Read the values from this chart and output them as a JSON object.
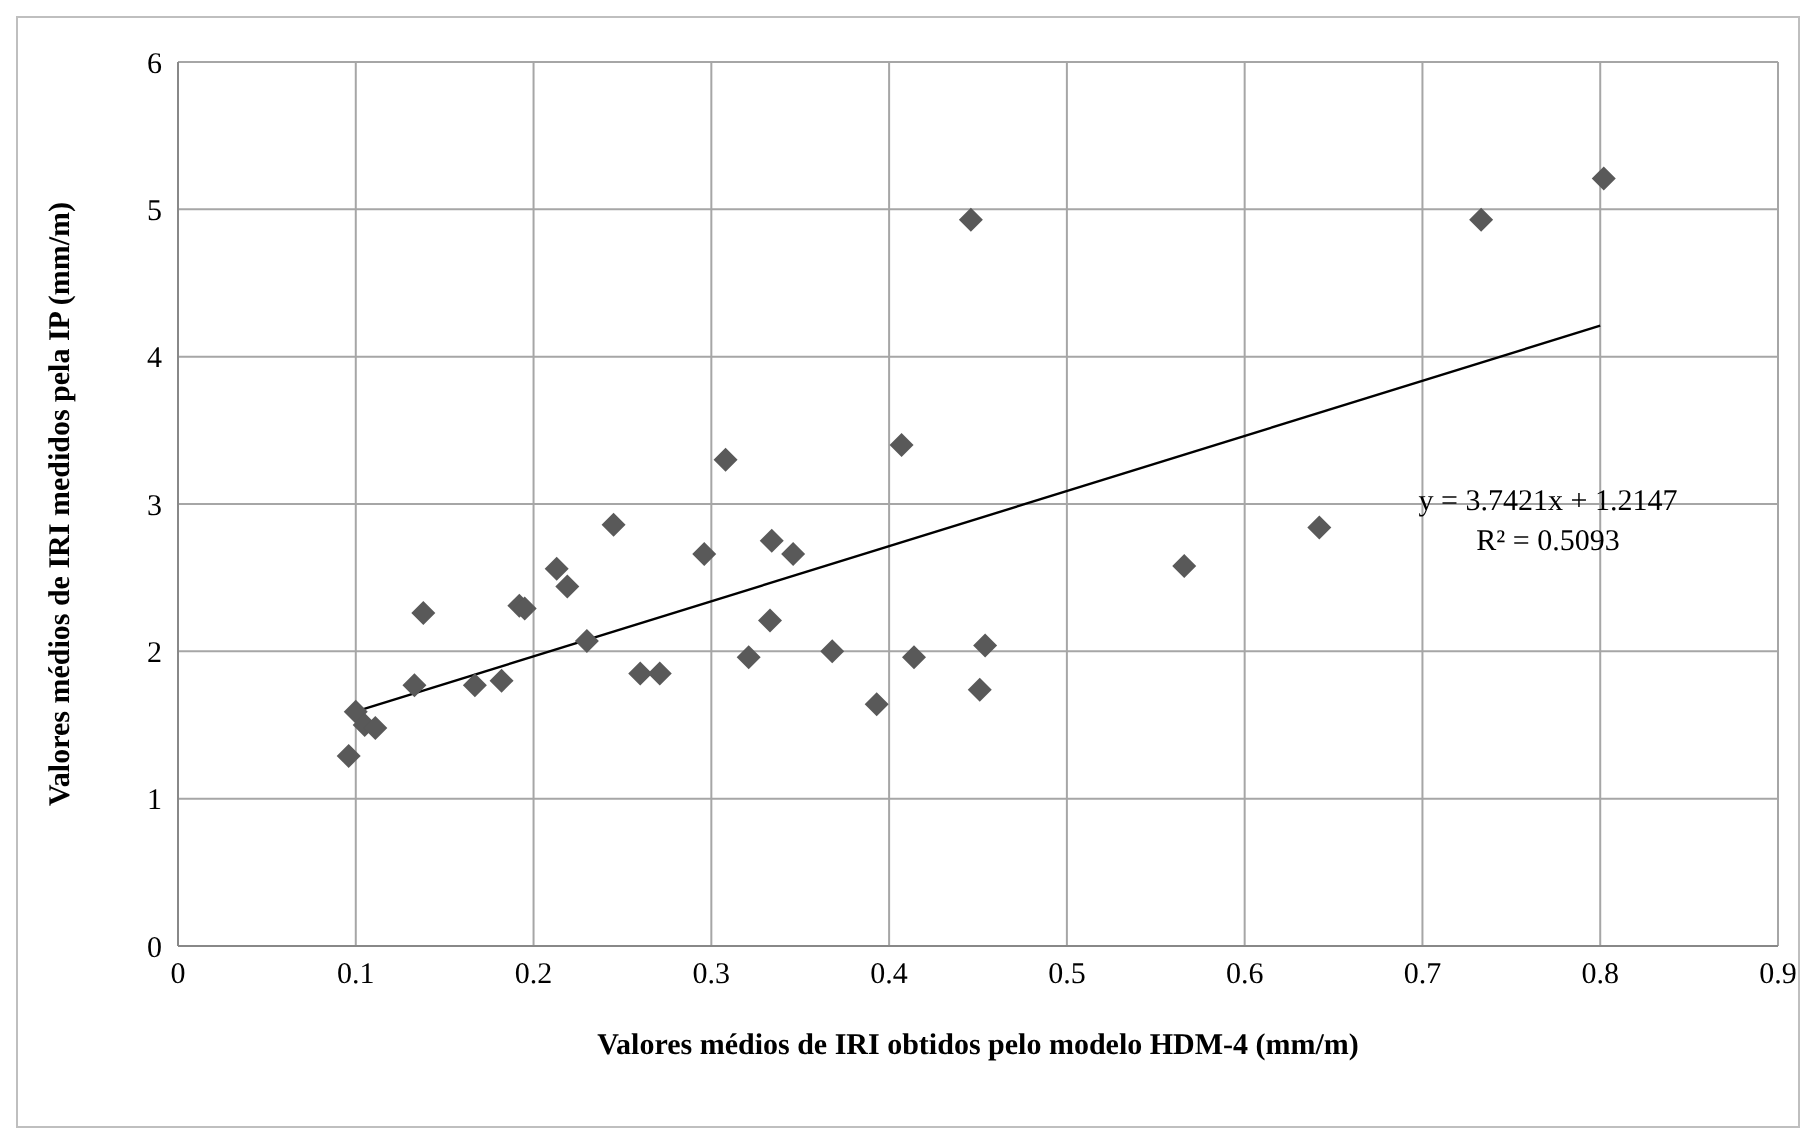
{
  "chart_data": {
    "type": "scatter",
    "xlabel": "Valores  médios de IRI obtidos pelo modelo HDM-4 (mm/m)",
    "ylabel": "Valores médios de IRI medidos pela IP (mm/m)",
    "series": [
      {
        "type": "scatter",
        "color": "#595959",
        "marker": "diamond",
        "x": [
          0.096,
          0.1,
          0.105,
          0.111,
          0.133,
          0.138,
          0.167,
          0.182,
          0.192,
          0.195,
          0.213,
          0.219,
          0.23,
          0.245,
          0.26,
          0.271,
          0.296,
          0.308,
          0.321,
          0.333,
          0.334,
          0.346,
          0.368,
          0.393,
          0.407,
          0.414,
          0.446,
          0.451,
          0.454,
          0.566,
          0.642,
          0.733,
          0.802
        ],
        "values": [
          1.29,
          1.59,
          1.5,
          1.48,
          1.77,
          2.26,
          1.77,
          1.8,
          2.31,
          2.29,
          2.56,
          2.44,
          2.07,
          2.86,
          1.85,
          1.85,
          2.66,
          3.3,
          1.96,
          2.21,
          2.75,
          2.66,
          2.0,
          1.64,
          3.4,
          1.96,
          4.93,
          1.74,
          2.04,
          2.58,
          2.84,
          4.93,
          5.21
        ]
      },
      {
        "type": "line",
        "color": "#000000",
        "marker": "none",
        "x": [
          0.097,
          0.8
        ],
        "values": [
          1.58,
          4.21
        ]
      }
    ],
    "annotations": [
      "y = 3.7421x + 1.2147",
      "R² = 0.5093"
    ],
    "xlim": [
      0,
      0.9
    ],
    "xticks": [
      0,
      0.1,
      0.2,
      0.3,
      0.4,
      0.5,
      0.6,
      0.7,
      0.8,
      0.9
    ],
    "ylim": [
      0,
      6
    ],
    "yticks": [
      0,
      1,
      2,
      3,
      4,
      5,
      6
    ],
    "grid": true,
    "legend": false
  }
}
